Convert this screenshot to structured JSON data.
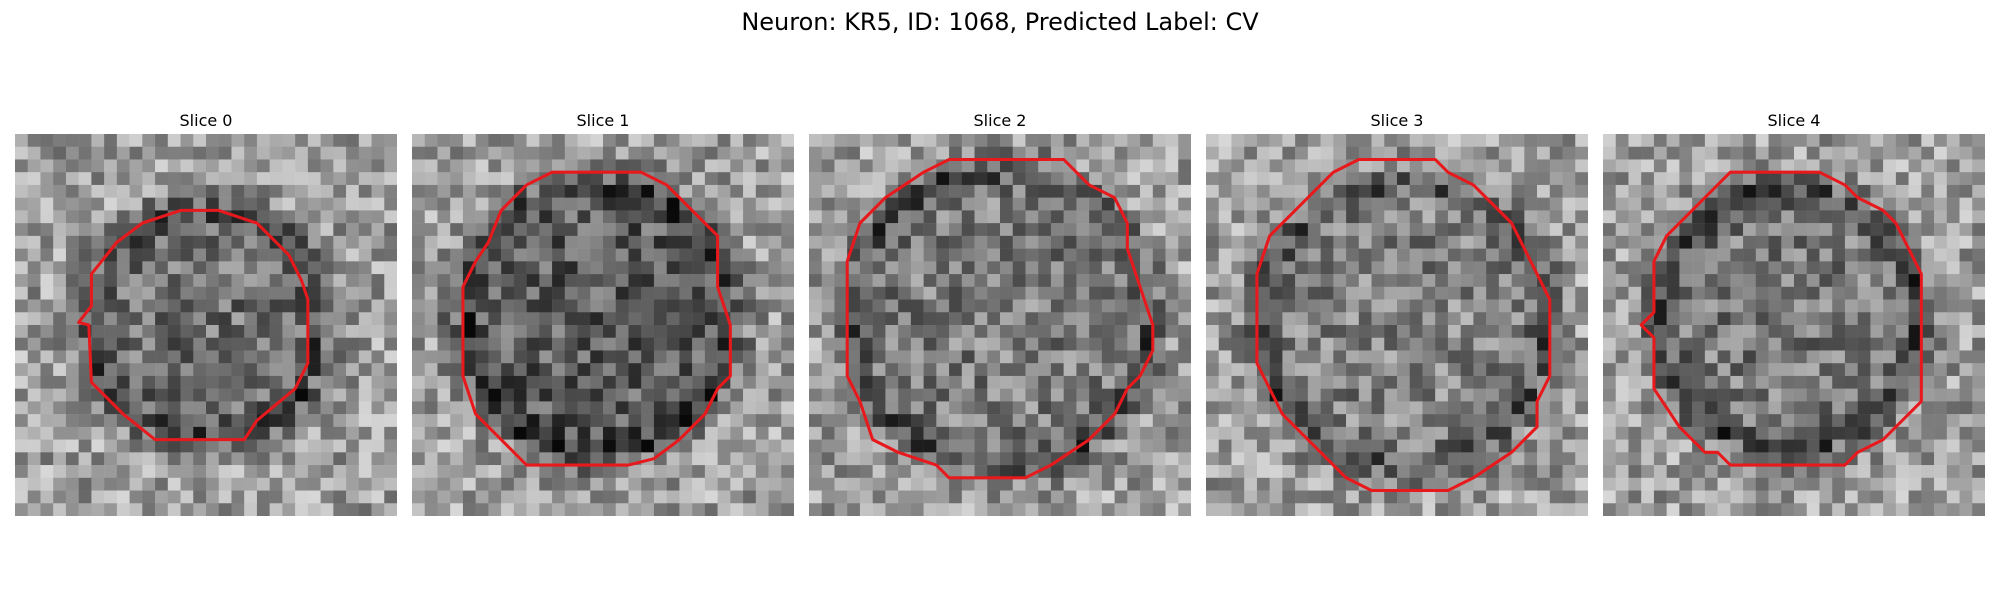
{
  "figure": {
    "title": "Neuron: KR5, ID: 1068, Predicted Label: CV"
  },
  "panels": [
    {
      "label": "Slice 0",
      "contour_color": "#e8191c"
    },
    {
      "label": "Slice 1",
      "contour_color": "#e8191c"
    },
    {
      "label": "Slice 2",
      "contour_color": "#e8191c"
    },
    {
      "label": "Slice 3",
      "contour_color": "#e8191c"
    },
    {
      "label": "Slice 4",
      "contour_color": "#e8191c"
    }
  ]
}
